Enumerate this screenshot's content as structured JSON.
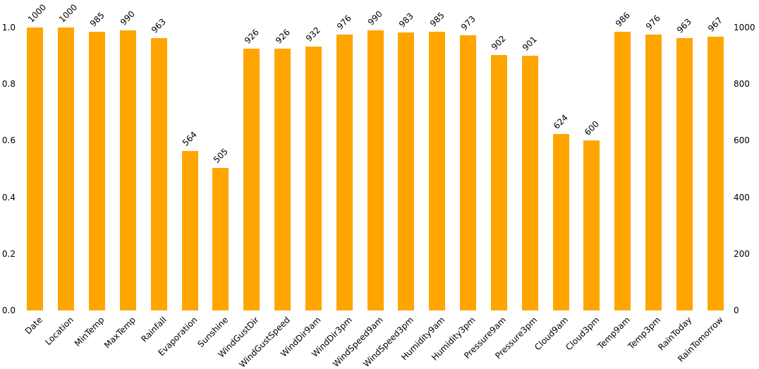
{
  "figure": {
    "background_color": "#ffffff",
    "text_color": "#000000"
  },
  "chart_data": {
    "type": "bar",
    "title": "",
    "xlabel": "",
    "ylabel": "",
    "grid": false,
    "bar_color": "#FFA500",
    "categories": [
      "Date",
      "Location",
      "MinTemp",
      "MaxTemp",
      "Rainfall",
      "Evaporation",
      "Sunshine",
      "WindGustDir",
      "WindGustSpeed",
      "WindDir9am",
      "WindDir3pm",
      "WindSpeed9am",
      "WindSpeed3pm",
      "Humidity9am",
      "Humidity3pm",
      "Pressure9am",
      "Pressure3pm",
      "Cloud9am",
      "Cloud3pm",
      "Temp9am",
      "Temp3pm",
      "RainToday",
      "RainTomorrow"
    ],
    "values": [
      1000,
      1000,
      985,
      990,
      963,
      564,
      505,
      926,
      926,
      932,
      976,
      990,
      983,
      985,
      973,
      902,
      901,
      624,
      600,
      986,
      976,
      963,
      967
    ],
    "value_label_rotation_deg": 45,
    "x_tick_rotation_deg": 45,
    "left_axis": {
      "min": 0,
      "max": 1,
      "ticks": [
        "0.0",
        "0.2",
        "0.4",
        "0.6",
        "0.8",
        "1.0"
      ]
    },
    "right_axis": {
      "min": 0,
      "max": 1000,
      "ticks": [
        "0",
        "200",
        "400",
        "600",
        "800",
        "1000"
      ]
    }
  }
}
